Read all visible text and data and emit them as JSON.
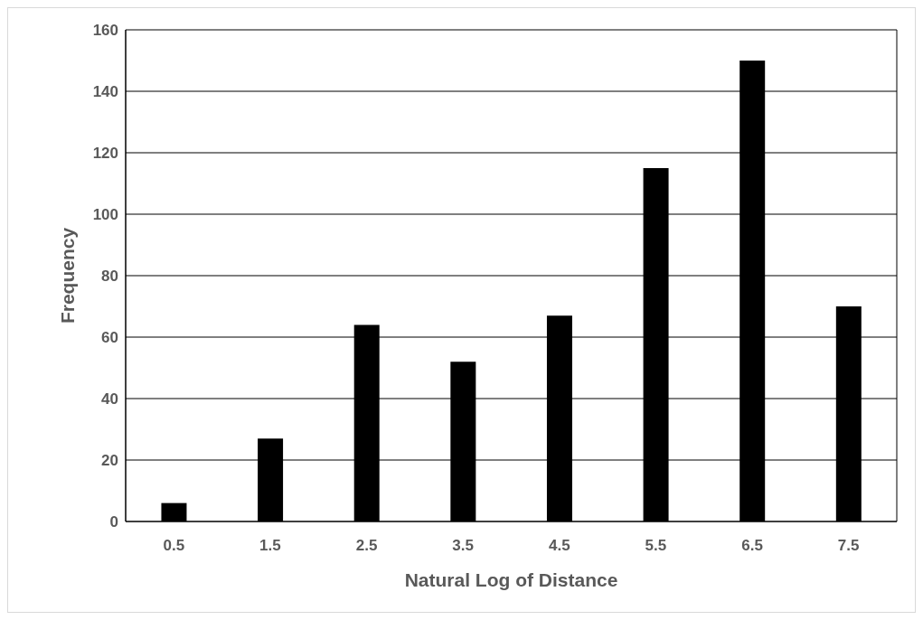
{
  "chart_data": {
    "type": "bar",
    "xlabel": "Natural Log of Distance",
    "ylabel": "Frequency",
    "categories": [
      "0.5",
      "1.5",
      "2.5",
      "3.5",
      "4.5",
      "5.5",
      "6.5",
      "7.5"
    ],
    "values": [
      6,
      27,
      64,
      52,
      67,
      115,
      150,
      70
    ],
    "color": "#000000",
    "ylim": [
      0,
      160
    ],
    "yticks": [
      0,
      20,
      40,
      60,
      80,
      100,
      120,
      140,
      160
    ],
    "grid": "y"
  }
}
